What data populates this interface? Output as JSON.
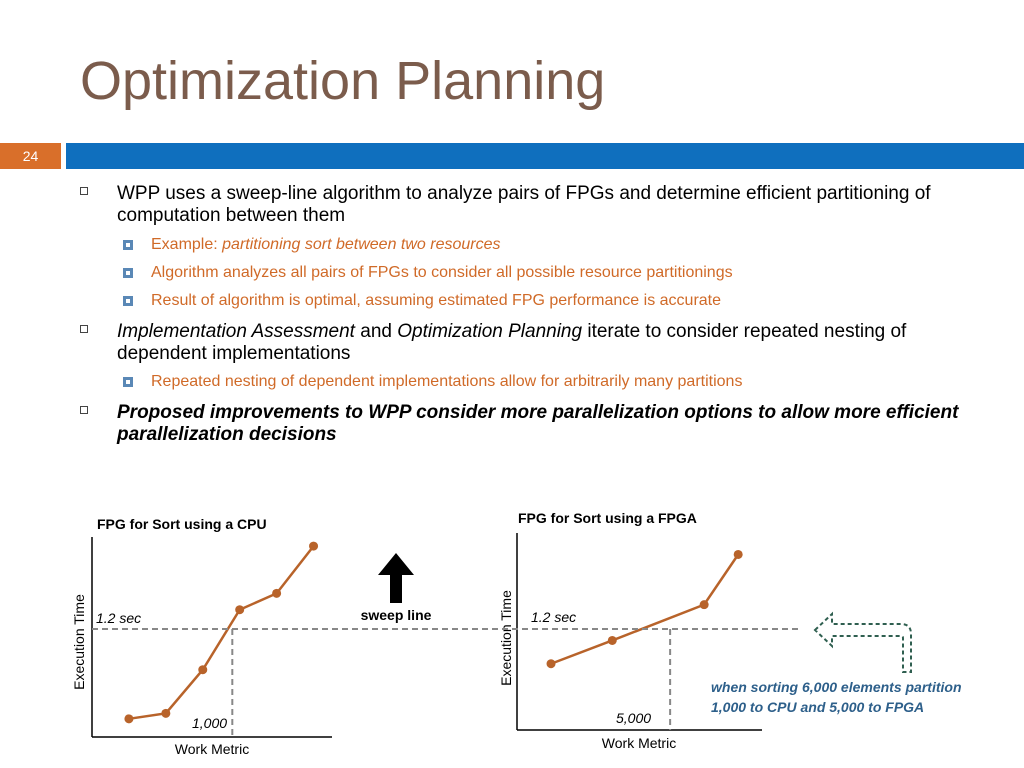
{
  "slide": {
    "title": "Optimization Planning",
    "number": "24"
  },
  "bullets": {
    "b1": {
      "text": "WPP uses a sweep-line algorithm to analyze pairs of FPGs and determine efficient partitioning of computation between them"
    },
    "b1_sub1": {
      "prefix": "Example: ",
      "italic": "partitioning sort between two resources"
    },
    "b1_sub2": {
      "text": "Algorithm analyzes all pairs of FPGs to consider all possible resource partitionings"
    },
    "b1_sub3": {
      "text": "Result of algorithm is optimal, assuming estimated FPG performance is accurate"
    },
    "b2": {
      "italic1": "Implementation Assessment",
      "mid": " and ",
      "italic2": "Optimization Planning",
      "rest": " iterate to consider repeated nesting of dependent implementations"
    },
    "b2_sub1": {
      "text": "Repeated nesting of dependent implementations allow for arbitrarily many partitions"
    },
    "b3": {
      "text": "Proposed improvements to WPP consider more parallelization options to allow more efficient parallelization decisions"
    }
  },
  "figure": {
    "sweep_label": "sweep line",
    "note_line1": "when sorting 6,000 elements partition",
    "note_line2": "1,000 to CPU and 5,000 to FPGA",
    "colors": {
      "line": "#b8632a",
      "axis": "#000000",
      "dash": "#888888",
      "note": "#2d5f8a",
      "arrow_outline": "#2f5f50"
    }
  },
  "chart_data": [
    {
      "type": "line",
      "title": "FPG for Sort using a CPU",
      "xlabel": "Work Metric",
      "ylabel": "Execution Time",
      "points": [
        [
          1,
          1
        ],
        [
          2,
          1.3
        ],
        [
          3,
          3.7
        ],
        [
          4,
          7
        ],
        [
          5,
          7.9
        ],
        [
          6,
          10.5
        ]
      ],
      "threshold_label": "1.2 sec",
      "threshold_y": 6.4,
      "split_label": "1,000",
      "split_x": 3.8,
      "xlim": [
        0,
        6.5
      ],
      "ylim": [
        0,
        11
      ]
    },
    {
      "type": "line",
      "title": "FPG for Sort using a FPGA",
      "xlabel": "Work Metric",
      "ylabel": "Execution Time",
      "points": [
        [
          1,
          3.7
        ],
        [
          2.8,
          5
        ],
        [
          5.5,
          7
        ],
        [
          6.5,
          9.8
        ]
      ],
      "threshold_label": "1.2 sec",
      "threshold_y": 6.1,
      "split_label": "5,000",
      "split_x": 4.5,
      "xlim": [
        0,
        7.2
      ],
      "ylim": [
        0,
        11
      ]
    }
  ]
}
